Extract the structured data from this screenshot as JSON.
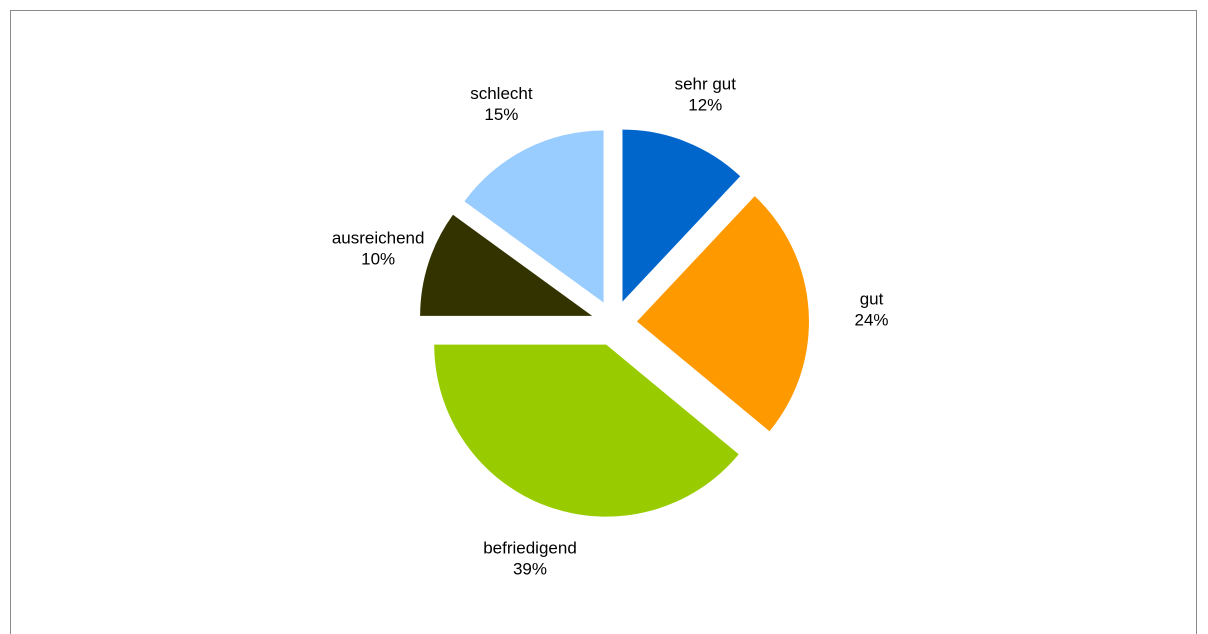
{
  "chart_data": {
    "type": "pie",
    "title": "",
    "exploded": true,
    "legend": "none",
    "slices": [
      {
        "label": "sehr gut",
        "percent_label": "12%",
        "value": 12,
        "color": "#0066CC"
      },
      {
        "label": "gut",
        "percent_label": "24%",
        "value": 24,
        "color": "#FF9900"
      },
      {
        "label": "befriedigend",
        "percent_label": "39%",
        "value": 39,
        "color": "#99CC00"
      },
      {
        "label": "ausreichend",
        "percent_label": "10%",
        "value": 10,
        "color": "#333300"
      },
      {
        "label": "schlecht",
        "percent_label": "15%",
        "value": 15,
        "color": "#99CCFF"
      }
    ]
  }
}
